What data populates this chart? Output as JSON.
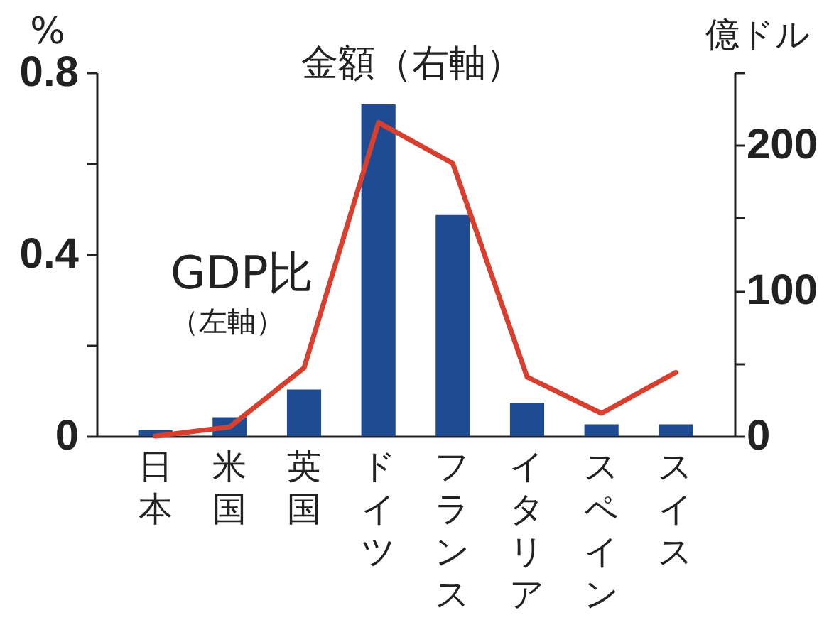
{
  "chart_data": {
    "type": "bar",
    "ylabel": "%",
    "y2label": "億ドル",
    "categories": [
      "日本",
      "米国",
      "英国",
      "ドイツ",
      "フランス",
      "イタリア",
      "スペイン",
      "スイス"
    ],
    "ylim": [
      0,
      0.8
    ],
    "yticks": [
      0,
      {
        "value": 0.2,
        "label": null
      },
      0.4,
      {
        "value": 0.6,
        "label": null
      },
      0.8
    ],
    "y2lim": [
      0,
      250
    ],
    "y2ticks": [
      0,
      {
        "value": 50,
        "label": null
      },
      100,
      {
        "value": 150,
        "label": null
      },
      200,
      {
        "value": 250,
        "label": null
      }
    ],
    "series": [
      {
        "name": "金額（右軸）",
        "axis": "y2",
        "color": "#1e4b91",
        "values": [
          4,
          13,
          32,
          228,
          152,
          23,
          8,
          8
        ]
      },
      {
        "name": "GDP比（左軸）",
        "type": "line",
        "axis": "y",
        "color": "#d7402f",
        "values": [
          0,
          0.02,
          0.15,
          0.69,
          0.6,
          0.13,
          0.05,
          0.14
        ]
      }
    ]
  }
}
